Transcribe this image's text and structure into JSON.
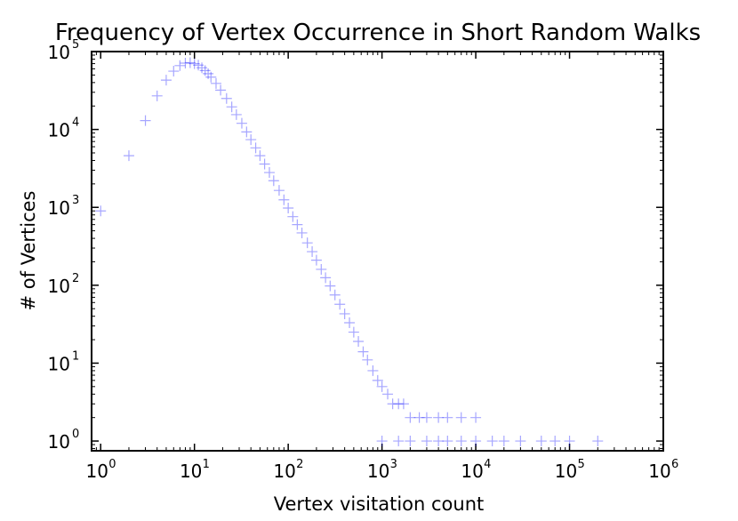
{
  "chart_data": {
    "type": "scatter",
    "title": "Frequency of Vertex Occurrence in Short Random Walks",
    "xlabel": "Vertex visitation count",
    "ylabel": "# of Vertices",
    "x_scale": "log",
    "y_scale": "log",
    "xlim": [
      0.8,
      1000000
    ],
    "ylim": [
      0.75,
      100000
    ],
    "grid": false,
    "marker": "+",
    "marker_color": "#0000ff",
    "marker_alpha": 0.25,
    "x_ticks": [
      {
        "base": "10",
        "exp": "0",
        "value": 1
      },
      {
        "base": "10",
        "exp": "1",
        "value": 10
      },
      {
        "base": "10",
        "exp": "2",
        "value": 100
      },
      {
        "base": "10",
        "exp": "3",
        "value": 1000
      },
      {
        "base": "10",
        "exp": "4",
        "value": 10000
      },
      {
        "base": "10",
        "exp": "5",
        "value": 100000
      },
      {
        "base": "10",
        "exp": "6",
        "value": 1000000
      }
    ],
    "y_ticks": [
      {
        "base": "10",
        "exp": "0",
        "value": 1
      },
      {
        "base": "10",
        "exp": "1",
        "value": 10
      },
      {
        "base": "10",
        "exp": "2",
        "value": 100
      },
      {
        "base": "10",
        "exp": "3",
        "value": 1000
      },
      {
        "base": "10",
        "exp": "4",
        "value": 10000
      },
      {
        "base": "10",
        "exp": "5",
        "value": 100000
      }
    ],
    "series": [
      {
        "points": [
          [
            1,
            900
          ],
          [
            2,
            4600
          ],
          [
            3,
            13000
          ],
          [
            4,
            27000
          ],
          [
            5,
            43000
          ],
          [
            6,
            56000
          ],
          [
            7,
            66000
          ],
          [
            8,
            71000
          ],
          [
            9,
            72000
          ],
          [
            10,
            70000
          ],
          [
            11,
            67000
          ],
          [
            12,
            62000
          ],
          [
            13,
            57000
          ],
          [
            14,
            52000
          ],
          [
            15,
            47000
          ],
          [
            17,
            39000
          ],
          [
            19,
            32000
          ],
          [
            22,
            25000
          ],
          [
            25,
            19500
          ],
          [
            28,
            15500
          ],
          [
            32,
            12000
          ],
          [
            36,
            9300
          ],
          [
            40,
            7400
          ],
          [
            45,
            5800
          ],
          [
            50,
            4600
          ],
          [
            56,
            3600
          ],
          [
            63,
            2800
          ],
          [
            70,
            2200
          ],
          [
            80,
            1650
          ],
          [
            90,
            1250
          ],
          [
            100,
            980
          ],
          [
            112,
            760
          ],
          [
            125,
            600
          ],
          [
            140,
            470
          ],
          [
            160,
            350
          ],
          [
            180,
            270
          ],
          [
            200,
            210
          ],
          [
            225,
            160
          ],
          [
            250,
            125
          ],
          [
            280,
            98
          ],
          [
            315,
            75
          ],
          [
            355,
            57
          ],
          [
            400,
            43
          ],
          [
            450,
            33
          ],
          [
            500,
            25
          ],
          [
            560,
            19
          ],
          [
            630,
            14
          ],
          [
            700,
            11
          ],
          [
            800,
            8
          ],
          [
            900,
            6
          ],
          [
            1000,
            5
          ],
          [
            1150,
            4
          ],
          [
            1300,
            3
          ],
          [
            1500,
            3
          ],
          [
            1700,
            3
          ],
          [
            2000,
            2
          ],
          [
            2500,
            2
          ],
          [
            3000,
            2
          ],
          [
            4000,
            2
          ],
          [
            5000,
            2
          ],
          [
            7000,
            2
          ],
          [
            10000,
            2
          ],
          [
            1000,
            1
          ],
          [
            1500,
            1
          ],
          [
            2000,
            1
          ],
          [
            3000,
            1
          ],
          [
            4000,
            1
          ],
          [
            5000,
            1
          ],
          [
            7000,
            1
          ],
          [
            10000,
            1
          ],
          [
            15000,
            1
          ],
          [
            20000,
            1
          ],
          [
            30000,
            1
          ],
          [
            50000,
            1
          ],
          [
            70000,
            1
          ],
          [
            100000,
            1
          ],
          [
            200000,
            1
          ]
        ]
      }
    ]
  }
}
